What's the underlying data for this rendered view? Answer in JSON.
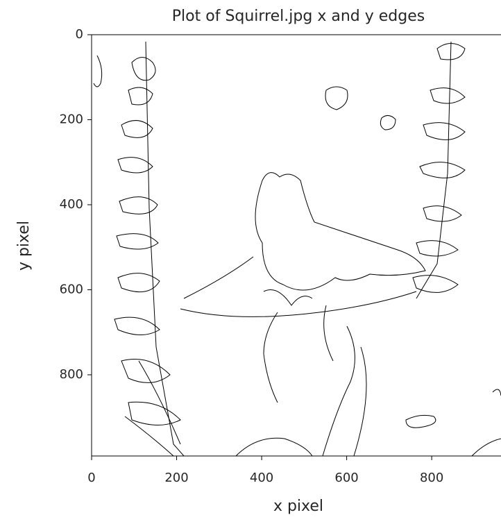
{
  "chart_data": {
    "type": "image",
    "title": "Plot of Squirrel.jpg x and y edges",
    "x_label": "x pixel",
    "y_label": "y pixel",
    "xlim": [
      0,
      963
    ],
    "ylim": [
      991,
      0
    ],
    "xticks": [
      0,
      200,
      400,
      600,
      800
    ],
    "yticks": [
      0,
      200,
      400,
      600,
      800
    ]
  }
}
